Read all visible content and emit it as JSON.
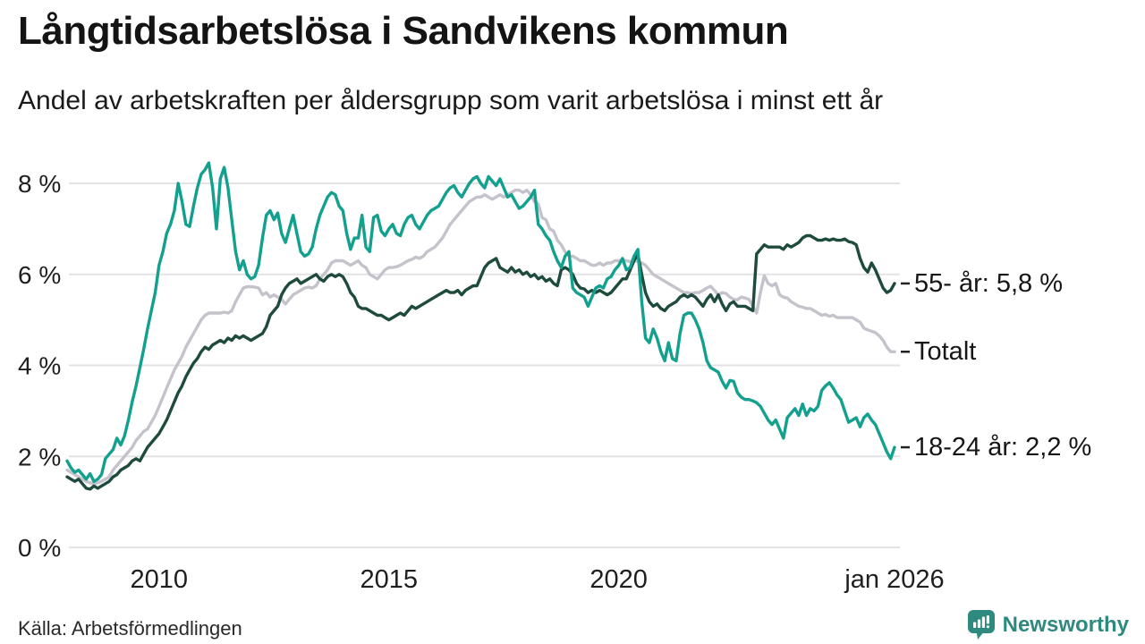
{
  "header": {
    "title": "Långtidsarbetslösa i Sandvikens kommun",
    "subtitle": "Andel av arbetskraften per åldersgrupp som varit arbetslösa i minst ett år"
  },
  "footer": {
    "source": "Källa: Arbetsförmedlingen",
    "brand": "Newsworthy",
    "brand_icon": "speech-bubble-bar-chart-icon"
  },
  "colors": {
    "teal": "#13a08e",
    "dark_green": "#1e4b3e",
    "gray": "#c4c3cb",
    "grid": "#e3e3e6",
    "axis_text": "#1f1f1f",
    "brand_teal": "#2e897f"
  },
  "chart_data": {
    "type": "line",
    "title": "Långtidsarbetslösa i Sandvikens kommun",
    "subtitle": "Andel av arbetskraften per åldersgrupp som varit arbetslösa i minst ett år",
    "unit": "%",
    "x_start": "2008-01",
    "x_end": "2026-01",
    "x_interval": "monthly",
    "ylim": [
      0,
      8.6
    ],
    "grid": "horizontal",
    "legend_position": "right-end-labels",
    "yticks": [
      {
        "value": 0,
        "label": "0 %"
      },
      {
        "value": 2,
        "label": "2 %"
      },
      {
        "value": 4,
        "label": "4 %"
      },
      {
        "value": 6,
        "label": "6 %"
      },
      {
        "value": 8,
        "label": "8 %"
      }
    ],
    "xticks": [
      {
        "i": 24,
        "label": "2010"
      },
      {
        "i": 84,
        "label": "2015"
      },
      {
        "i": 144,
        "label": "2020"
      },
      {
        "i": 216,
        "label": "jan 2026"
      }
    ],
    "draw_order": [
      1,
      0,
      2
    ],
    "series": [
      {
        "name": "55- år",
        "end_label": "55- år: 5,8 %",
        "latest_value": "5,8 %",
        "color": "#1e4b3e",
        "values": [
          1.55,
          1.5,
          1.45,
          1.5,
          1.4,
          1.3,
          1.28,
          1.35,
          1.3,
          1.35,
          1.4,
          1.45,
          1.55,
          1.6,
          1.7,
          1.75,
          1.8,
          1.9,
          1.95,
          1.9,
          2.05,
          2.2,
          2.3,
          2.4,
          2.5,
          2.65,
          2.8,
          3,
          3.2,
          3.4,
          3.55,
          3.75,
          3.9,
          4.05,
          4.15,
          4.3,
          4.4,
          4.35,
          4.45,
          4.5,
          4.55,
          4.5,
          4.6,
          4.55,
          4.65,
          4.6,
          4.65,
          4.6,
          4.55,
          4.6,
          4.65,
          4.7,
          4.85,
          5.1,
          5.2,
          5.3,
          5.55,
          5.7,
          5.8,
          5.85,
          5.9,
          5.8,
          5.85,
          5.9,
          5.95,
          6,
          5.9,
          5.85,
          5.95,
          6,
          5.95,
          6,
          5.95,
          5.8,
          5.6,
          5.5,
          5.3,
          5.25,
          5.25,
          5.2,
          5.15,
          5.1,
          5.1,
          5.05,
          5,
          5.05,
          5.1,
          5.15,
          5.1,
          5.2,
          5.3,
          5.25,
          5.3,
          5.35,
          5.4,
          5.45,
          5.5,
          5.55,
          5.6,
          5.65,
          5.6,
          5.6,
          5.65,
          5.55,
          5.65,
          5.7,
          5.75,
          5.75,
          5.95,
          6.15,
          6.25,
          6.3,
          6.35,
          6.15,
          6.1,
          6.05,
          6.15,
          6.05,
          6.1,
          6,
          6.05,
          5.95,
          6,
          5.9,
          5.95,
          5.85,
          5.9,
          5.8,
          5.75,
          6.1,
          6.15,
          6.1,
          6,
          5.8,
          5.7,
          5.68,
          5.6,
          5.65,
          5.6,
          5.65,
          5.6,
          5.55,
          5.6,
          5.7,
          5.8,
          5.9,
          5.9,
          6.1,
          6.3,
          6.45,
          6,
          5.6,
          5.4,
          5.3,
          5.35,
          5.25,
          5.2,
          5.3,
          5.35,
          5.4,
          5.5,
          5.55,
          5.5,
          5.55,
          5.5,
          5.4,
          5.3,
          5.45,
          5.55,
          5.4,
          5.55,
          5.35,
          5.2,
          5.35,
          5.4,
          5.3,
          5.3,
          5.3,
          5.25,
          5.2,
          6.45,
          6.55,
          6.65,
          6.6,
          6.6,
          6.6,
          6.6,
          6.55,
          6.65,
          6.6,
          6.65,
          6.7,
          6.8,
          6.85,
          6.85,
          6.8,
          6.75,
          6.75,
          6.78,
          6.75,
          6.78,
          6.75,
          6.75,
          6.78,
          6.72,
          6.7,
          6.65,
          6.35,
          6.15,
          6.05,
          6.25,
          6.1,
          5.9,
          5.7,
          5.6,
          5.65,
          5.8
        ]
      },
      {
        "name": "Totalt",
        "end_label": "Totalt",
        "latest_value": "4,3 %",
        "color": "#c4c3cb",
        "values": [
          1.7,
          1.65,
          1.6,
          1.55,
          1.5,
          1.45,
          1.42,
          1.4,
          1.42,
          1.45,
          1.5,
          1.55,
          1.7,
          1.8,
          1.9,
          2,
          2.1,
          2.2,
          2.35,
          2.45,
          2.55,
          2.6,
          2.75,
          2.9,
          3.1,
          3.3,
          3.5,
          3.7,
          3.9,
          4.05,
          4.2,
          4.4,
          4.55,
          4.7,
          4.85,
          5,
          5.1,
          5.15,
          5.15,
          5.15,
          5.15,
          5.17,
          5.15,
          5.2,
          5.4,
          5.55,
          5.7,
          5.73,
          5.73,
          5.72,
          5.7,
          5.55,
          5.6,
          5.5,
          5.55,
          5.5,
          5.45,
          5.35,
          5.45,
          5.55,
          5.6,
          5.65,
          5.7,
          5.72,
          5.7,
          5.75,
          5.9,
          6,
          6.1,
          6.25,
          6.3,
          6.3,
          6.3,
          6.25,
          6.2,
          6.25,
          6.3,
          6.2,
          6.15,
          6,
          5.95,
          5.9,
          6,
          6.1,
          6.15,
          6.15,
          6.17,
          6.2,
          6.25,
          6.3,
          6.33,
          6.38,
          6.35,
          6.4,
          6.5,
          6.55,
          6.6,
          6.7,
          6.8,
          6.95,
          7.1,
          7.2,
          7.3,
          7.4,
          7.5,
          7.6,
          7.65,
          7.7,
          7.7,
          7.75,
          7.7,
          7.65,
          7.7,
          7.75,
          7.7,
          7.75,
          7.8,
          7.85,
          7.85,
          7.8,
          7.85,
          7.75,
          7.6,
          7.55,
          7.25,
          7.2,
          7,
          6.95,
          6.75,
          6.65,
          6.5,
          6.4,
          6.4,
          6.35,
          6.3,
          6.3,
          6.25,
          6.2,
          6.2,
          6.25,
          6.2,
          6.25,
          6.25,
          6.3,
          6.3,
          6.32,
          6.3,
          6.28,
          6.3,
          6.28,
          6.25,
          6.2,
          6.1,
          6,
          5.95,
          5.9,
          5.85,
          5.8,
          5.75,
          5.7,
          5.65,
          5.6,
          5.6,
          5.58,
          5.6,
          5.6,
          5.65,
          5.7,
          5.74,
          5.65,
          5.55,
          5.6,
          5.58,
          5.5,
          5.45,
          5.44,
          5.5,
          5.48,
          5.45,
          5.3,
          5.15,
          5.6,
          5.97,
          5.8,
          5.75,
          5.8,
          5.55,
          5.5,
          5.48,
          5.4,
          5.35,
          5.3,
          5.28,
          5.25,
          5.25,
          5.2,
          5.15,
          5.1,
          5.12,
          5.08,
          5.1,
          5.05,
          5.05,
          5.05,
          5.05,
          5.05,
          5,
          4.95,
          4.82,
          4.78,
          4.75,
          4.72,
          4.65,
          4.55,
          4.4,
          4.3,
          4.3
        ]
      },
      {
        "name": "18-24 år",
        "end_label": "18-24 år: 2,2 %",
        "latest_value": "2,2 %",
        "color": "#13a08e",
        "values": [
          1.9,
          1.75,
          1.65,
          1.7,
          1.6,
          1.5,
          1.62,
          1.45,
          1.5,
          1.6,
          1.95,
          2.05,
          2.15,
          2.4,
          2.25,
          2.45,
          2.8,
          3.2,
          3.55,
          3.95,
          4.35,
          4.8,
          5.2,
          5.6,
          6.2,
          6.5,
          6.9,
          7.1,
          7.4,
          8,
          7.6,
          7.1,
          7.05,
          7.5,
          7.9,
          8.2,
          8.3,
          8.45,
          7.9,
          7,
          8.1,
          8.35,
          7.9,
          7.2,
          6.5,
          6.1,
          6.3,
          6,
          5.9,
          5.95,
          6.2,
          6.8,
          7.3,
          7.4,
          7.2,
          7.35,
          6.9,
          6.7,
          7,
          7.3,
          6.9,
          6.5,
          6.4,
          6.45,
          6.6,
          7,
          7.3,
          7.5,
          7.7,
          7.8,
          7.75,
          7.5,
          7.4,
          6.9,
          6.55,
          6.8,
          6.8,
          7.3,
          6.6,
          6.5,
          7.25,
          7.3,
          6.95,
          6.85,
          7,
          7.1,
          6.9,
          6.85,
          7.1,
          7.25,
          7.3,
          7.1,
          7,
          7.15,
          7.3,
          7.4,
          7.45,
          7.5,
          7.65,
          7.8,
          7.9,
          7.95,
          7.8,
          7.7,
          7.85,
          8,
          8.1,
          8.15,
          8,
          7.9,
          8.15,
          8.05,
          7.95,
          8.1,
          7.9,
          7.7,
          7.75,
          7.6,
          7.45,
          7.5,
          7.6,
          7.7,
          7.85,
          7.1,
          7,
          6.85,
          6.75,
          6.5,
          6.3,
          6.15,
          6.4,
          6.5,
          5.7,
          5.6,
          5.55,
          5.5,
          5.3,
          5.5,
          5.7,
          5.75,
          5.7,
          5.9,
          5.95,
          6.1,
          6.2,
          6.35,
          6.1,
          6.15,
          6.4,
          6.55,
          5.4,
          4.6,
          4.5,
          4.8,
          4.6,
          4.3,
          4.1,
          4.5,
          4.15,
          4.1,
          4.7,
          5.1,
          5.15,
          5.15,
          5,
          4.8,
          4.5,
          4.1,
          3.95,
          3.9,
          3.85,
          3.65,
          3.5,
          3.67,
          3.65,
          3.4,
          3.3,
          3.25,
          3.25,
          3.22,
          3.18,
          3.1,
          2.95,
          2.8,
          2.7,
          2.8,
          2.6,
          2.4,
          2.85,
          2.95,
          3.05,
          2.9,
          3.15,
          2.9,
          3.05,
          3,
          3.1,
          3.45,
          3.55,
          3.62,
          3.5,
          3.35,
          3.25,
          3,
          2.75,
          2.8,
          2.85,
          2.65,
          2.85,
          2.93,
          2.8,
          2.7,
          2.5,
          2.3,
          2.1,
          1.95,
          2.2
        ]
      }
    ]
  }
}
